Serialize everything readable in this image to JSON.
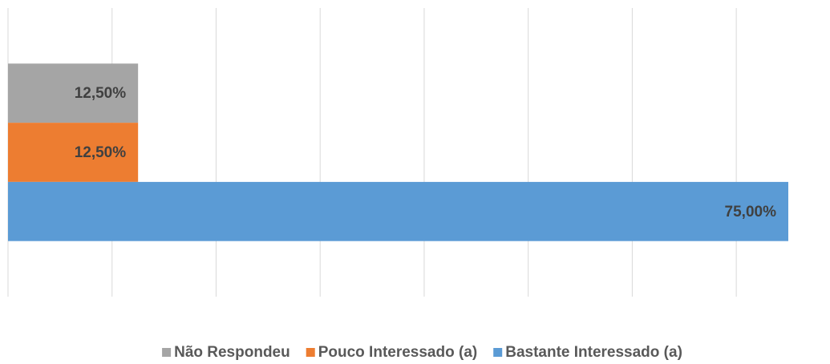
{
  "chart_data": {
    "type": "bar",
    "orientation": "horizontal",
    "categories": [
      null
    ],
    "series": [
      {
        "name": "Não Respondeu",
        "color": "#a5a5a5",
        "values": [
          12.5
        ],
        "value_labels": [
          "12,50%"
        ]
      },
      {
        "name": "Pouco Interessado (a)",
        "color": "#ed7d31",
        "values": [
          12.5
        ],
        "value_labels": [
          "12,50%"
        ]
      },
      {
        "name": "Bastante Interessado (a)",
        "color": "#5b9bd5",
        "values": [
          75
        ],
        "value_labels": [
          "75,00%"
        ]
      }
    ],
    "xlim": [
      0,
      75
    ],
    "xticks": [
      0,
      10,
      20,
      30,
      40,
      50,
      60,
      70
    ],
    "grid": true,
    "legend": "bottom"
  }
}
